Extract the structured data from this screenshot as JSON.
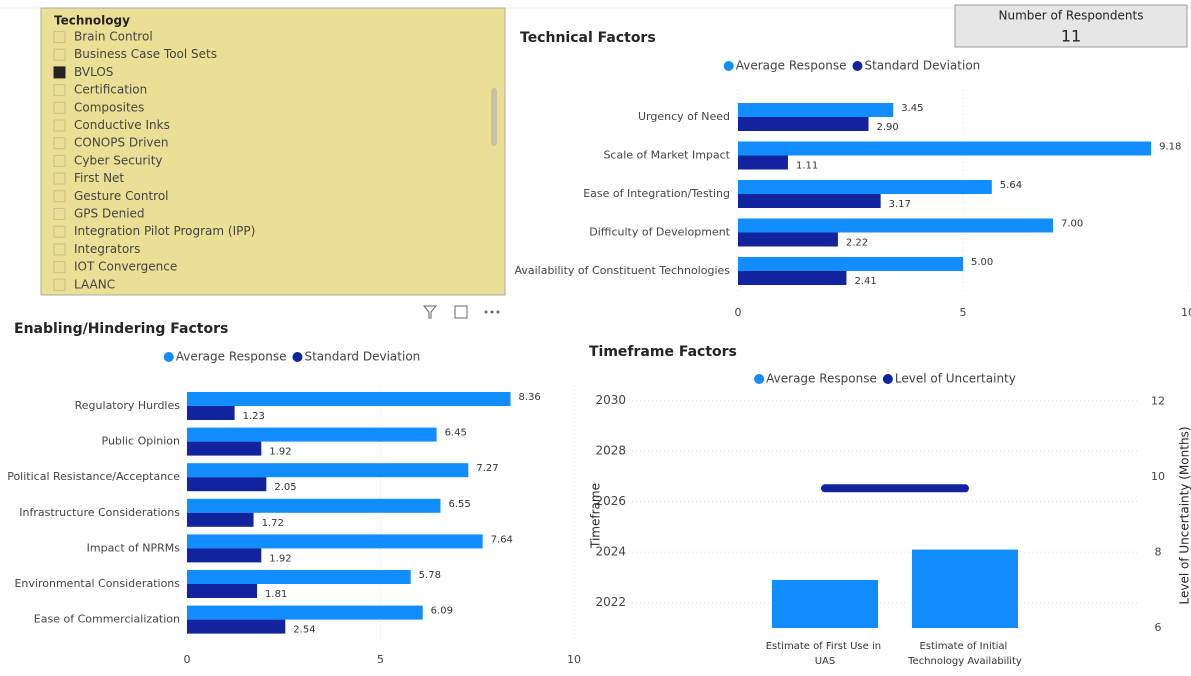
{
  "slicer": {
    "title": "Technology",
    "items": [
      "Brain Control",
      "Business Case Tool Sets",
      "BVLOS",
      "Certification",
      "Composites",
      "Conductive Inks",
      "CONOPS Driven",
      "Cyber Security",
      "First Net",
      "Gesture Control",
      "GPS Denied",
      "Integration Pilot Program (IPP)",
      "Integrators",
      "IOT Convergence",
      "LAANC"
    ],
    "checked": [
      false,
      false,
      true,
      false,
      false,
      false,
      false,
      false,
      false,
      false,
      false,
      false,
      false,
      false,
      false
    ]
  },
  "card": {
    "label": "Number of Respondents",
    "value": 11
  },
  "chart_data": [
    {
      "type": "hbar",
      "title": "Technical Factors",
      "categories": [
        "Urgency of Need",
        "Scale of Market Impact",
        "Ease of Integration/Testing",
        "Difficulty of Development",
        "Availability of Constituent Technologies"
      ],
      "series": [
        {
          "name": "Average Response",
          "color": "#118DFF",
          "values": [
            3.45,
            9.18,
            5.64,
            7.0,
            5.0
          ],
          "value_labels": [
            "3.45",
            "9.18",
            "5.64",
            "7.00",
            "5.00"
          ]
        },
        {
          "name": "Standard Deviation",
          "color": "#12239E",
          "values": [
            2.9,
            1.11,
            3.17,
            2.22,
            2.41
          ],
          "value_labels": [
            "2.90",
            "1.11",
            "3.17",
            "2.22",
            "2.41"
          ]
        }
      ],
      "xlim": [
        0,
        10
      ],
      "xticks": [
        0,
        5,
        10
      ],
      "grid": true
    },
    {
      "type": "hbar",
      "title": "Enabling/Hindering Factors",
      "categories": [
        "Regulatory Hurdles",
        "Public Opinion",
        "Political Resistance/Acceptance",
        "Infrastructure Considerations",
        "Impact of NPRMs",
        "Environmental Considerations",
        "Ease of Commercialization"
      ],
      "series": [
        {
          "name": "Average Response",
          "color": "#118DFF",
          "values": [
            8.36,
            6.45,
            7.27,
            6.55,
            7.64,
            5.78,
            6.09
          ],
          "value_labels": [
            "8.36",
            "6.45",
            "7.27",
            "6.55",
            "7.64",
            "5.78",
            "6.09"
          ]
        },
        {
          "name": "Standard Deviation",
          "color": "#12239E",
          "values": [
            1.23,
            1.92,
            2.05,
            1.72,
            1.92,
            1.81,
            2.54
          ],
          "value_labels": [
            "1.23",
            "1.92",
            "2.05",
            "1.72",
            "1.92",
            "1.81",
            "2.54"
          ]
        }
      ],
      "xlim": [
        0,
        10
      ],
      "xticks": [
        0,
        5,
        10
      ],
      "grid": true
    },
    {
      "type": "combo",
      "title": "Timeframe Factors",
      "ylabel": "Timeframe",
      "y2label": "Level of Uncertainty (Months)",
      "categories": [
        "Estimate of First Use in UAS",
        "Estimate of Initial Technology Availability"
      ],
      "series": [
        {
          "name": "Average Response",
          "color": "#118DFF",
          "values": [
            2022.9,
            2024.1
          ]
        },
        {
          "name": "Level of Uncertainty",
          "color": "#12239E",
          "values": [
            9.7,
            9.7
          ],
          "axis": "y2"
        }
      ],
      "ylim": [
        2021,
        2031
      ],
      "yticks": [
        2022,
        2024,
        2026,
        2028,
        2030
      ],
      "y2lim": [
        6,
        12.7
      ],
      "y2ticks": [
        6,
        8,
        10,
        12
      ],
      "grid": true
    }
  ]
}
